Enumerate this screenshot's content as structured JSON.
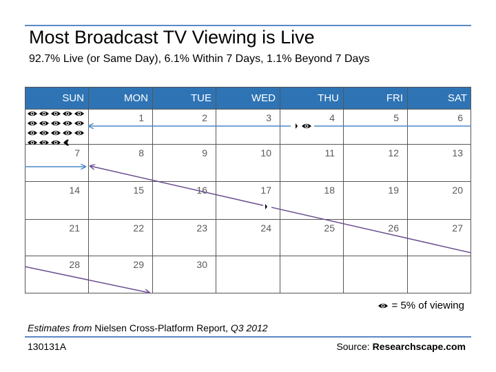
{
  "title": "Most Broadcast TV Viewing is Live",
  "subtitle": "92.7% Live (or Same Day), 6.1% Within 7 Days, 1.1% Beyond 7 Days",
  "calendar": {
    "weekdays": [
      "SUN",
      "MON",
      "TUE",
      "WED",
      "THU",
      "FRI",
      "SAT"
    ],
    "weeks": [
      [
        "",
        "1",
        "2",
        "3",
        "4",
        "5",
        "6"
      ],
      [
        "7",
        "8",
        "9",
        "10",
        "11",
        "12",
        "13"
      ],
      [
        "14",
        "15",
        "16",
        "17",
        "18",
        "19",
        "20"
      ],
      [
        "21",
        "22",
        "23",
        "24",
        "25",
        "26",
        "27"
      ],
      [
        "28",
        "29",
        "30",
        "",
        "",
        "",
        ""
      ]
    ],
    "header_color": "#2e74b5",
    "arrow_colors": {
      "within_7_days": "#4a86c6",
      "beyond_7_days": "#6a4e8f"
    },
    "icon": "eye-icon",
    "icon_counts": {
      "live_same_day": 18.5,
      "within_7_days": 1.25,
      "beyond_7_days": 0.25
    }
  },
  "legend": {
    "icon": "eye-icon",
    "text": "= 5% of viewing"
  },
  "footnote": {
    "prefix": "Estimates from",
    "middle": " Nielsen Cross-Platform Report, ",
    "period": "Q3 2012"
  },
  "code": "130131A",
  "source": {
    "prefix": "Source: ",
    "name": "Researchscape.com"
  }
}
